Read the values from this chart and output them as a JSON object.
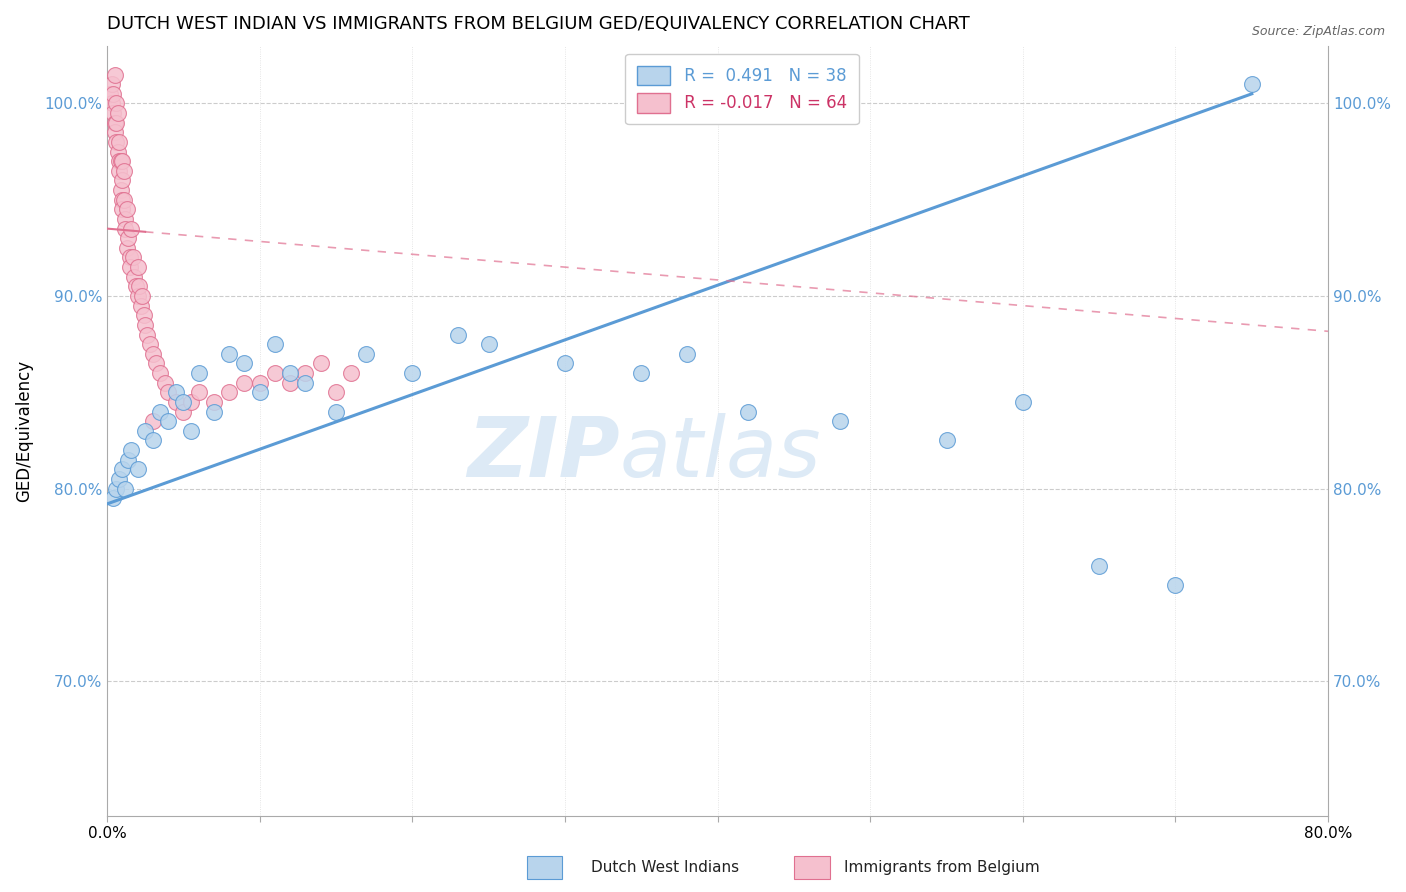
{
  "title": "DUTCH WEST INDIAN VS IMMIGRANTS FROM BELGIUM GED/EQUIVALENCY CORRELATION CHART",
  "source": "Source: ZipAtlas.com",
  "ylabel": "GED/Equivalency",
  "legend_blue_r": "R =  0.491",
  "legend_blue_n": "N = 38",
  "legend_pink_r": "R = -0.017",
  "legend_pink_n": "N = 64",
  "legend_blue_label": "Dutch West Indians",
  "legend_pink_label": "Immigrants from Belgium",
  "blue_fill": "#b8d4ec",
  "pink_fill": "#f5c0ce",
  "blue_edge": "#5b9bd5",
  "pink_edge": "#e07090",
  "blue_line": "#5b9bd5",
  "pink_line": "#e07090",
  "watermark_color": "#ddeaf6",
  "xmin": 0.0,
  "xmax": 80.0,
  "ymin": 63.0,
  "ymax": 103.0,
  "yticks": [
    70.0,
    80.0,
    90.0,
    100.0
  ],
  "ytick_labels": [
    "70.0%",
    "80.0%",
    "90.0%",
    "100.0%"
  ],
  "blue_x": [
    0.4,
    0.6,
    0.8,
    1.0,
    1.2,
    1.4,
    1.6,
    2.0,
    2.5,
    3.0,
    3.5,
    4.0,
    4.5,
    5.0,
    5.5,
    6.0,
    7.0,
    8.0,
    9.0,
    10.0,
    11.0,
    12.0,
    13.0,
    15.0,
    17.0,
    20.0,
    23.0,
    25.0,
    30.0,
    35.0,
    38.0,
    42.0,
    48.0,
    55.0,
    60.0,
    65.0,
    70.0,
    75.0
  ],
  "blue_y": [
    79.5,
    80.0,
    80.5,
    81.0,
    80.0,
    81.5,
    82.0,
    81.0,
    83.0,
    82.5,
    84.0,
    83.5,
    85.0,
    84.5,
    83.0,
    86.0,
    84.0,
    87.0,
    86.5,
    85.0,
    87.5,
    86.0,
    85.5,
    84.0,
    87.0,
    86.0,
    88.0,
    87.5,
    86.5,
    86.0,
    87.0,
    84.0,
    83.5,
    82.5,
    84.5,
    76.0,
    75.0,
    101.0
  ],
  "pink_x": [
    0.2,
    0.3,
    0.3,
    0.4,
    0.4,
    0.5,
    0.5,
    0.5,
    0.6,
    0.6,
    0.6,
    0.7,
    0.7,
    0.8,
    0.8,
    0.8,
    0.9,
    0.9,
    1.0,
    1.0,
    1.0,
    1.0,
    1.1,
    1.1,
    1.2,
    1.2,
    1.3,
    1.3,
    1.4,
    1.5,
    1.5,
    1.6,
    1.7,
    1.8,
    1.9,
    2.0,
    2.0,
    2.1,
    2.2,
    2.3,
    2.4,
    2.5,
    2.6,
    2.8,
    3.0,
    3.2,
    3.5,
    3.8,
    4.0,
    4.5,
    5.0,
    5.5,
    6.0,
    7.0,
    8.0,
    9.0,
    10.0,
    11.0,
    12.0,
    13.0,
    14.0,
    15.0,
    16.0,
    3.0
  ],
  "pink_y": [
    100.5,
    100.0,
    101.0,
    99.5,
    100.5,
    99.0,
    98.5,
    101.5,
    99.0,
    100.0,
    98.0,
    97.5,
    99.5,
    97.0,
    96.5,
    98.0,
    97.0,
    95.5,
    96.0,
    95.0,
    94.5,
    97.0,
    96.5,
    95.0,
    94.0,
    93.5,
    94.5,
    92.5,
    93.0,
    92.0,
    91.5,
    93.5,
    92.0,
    91.0,
    90.5,
    90.0,
    91.5,
    90.5,
    89.5,
    90.0,
    89.0,
    88.5,
    88.0,
    87.5,
    87.0,
    86.5,
    86.0,
    85.5,
    85.0,
    84.5,
    84.0,
    84.5,
    85.0,
    84.5,
    85.0,
    85.5,
    85.5,
    86.0,
    85.5,
    86.0,
    86.5,
    85.0,
    86.0,
    83.5
  ],
  "blue_line_x0": 0.0,
  "blue_line_y0": 79.2,
  "blue_line_x1": 75.0,
  "blue_line_y1": 100.5,
  "pink_line_x0": 0.0,
  "pink_line_y0": 93.5,
  "pink_line_x1": 75.0,
  "pink_line_y1": 88.5
}
